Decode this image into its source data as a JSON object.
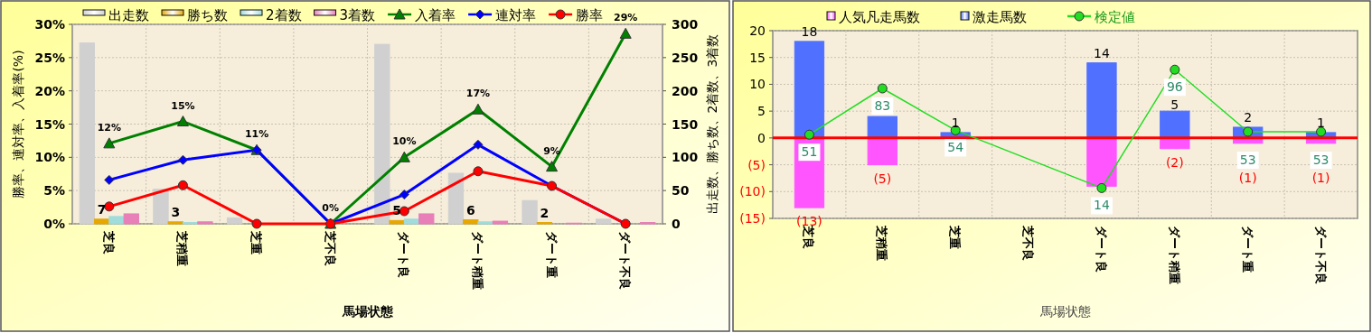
{
  "chart_data": [
    {
      "type": "bar",
      "categories": [
        "芝良",
        "芝稍重",
        "芝重",
        "芝不良",
        "ダート良",
        "ダート稍重",
        "ダート重",
        "ダート不良"
      ],
      "xlabel": "馬場状態",
      "ylabel": "勝率、連対率、入着率(%)",
      "y2label": "出走数、勝ち数、2着数、3着数",
      "ylim": [
        0,
        30
      ],
      "yticks": [
        {
          "value": 0,
          "label": "0%"
        },
        {
          "value": 5,
          "label": "5%"
        },
        {
          "value": 10,
          "label": "10%"
        },
        {
          "value": 15,
          "label": "15%"
        },
        {
          "value": 20,
          "label": "20%"
        },
        {
          "value": 25,
          "label": "25%"
        },
        {
          "value": 30,
          "label": "30%"
        }
      ],
      "y2lim": [
        0,
        300
      ],
      "y2ticks": [
        0,
        50,
        100,
        150,
        200,
        250,
        300
      ],
      "grid": true,
      "legend": "top",
      "series": [
        {
          "name": "出走数",
          "axis": "y2",
          "color": "#d0d0d0",
          "values": [
            272,
            52,
            9,
            0,
            270,
            76,
            35,
            7
          ]
        },
        {
          "name": "勝ち数",
          "axis": "y2",
          "color": "#e6a800",
          "values": [
            7,
            3,
            0,
            0,
            5,
            6,
            2,
            0
          ],
          "value_labels": [
            "7",
            "3",
            null,
            null,
            "5",
            "6",
            "2",
            null
          ]
        },
        {
          "name": "2着数",
          "axis": "y2",
          "color": "#a0dcdc",
          "values": [
            11,
            2,
            null,
            0,
            7,
            3,
            0,
            0
          ]
        },
        {
          "name": "3着数",
          "axis": "y2",
          "color": "#e87fb8",
          "values": [
            15,
            3,
            0,
            0,
            15,
            4,
            1,
            2
          ]
        },
        {
          "name": "入着率",
          "type": "line",
          "axis": "y",
          "color": "#008000",
          "marker": "triangle",
          "values": [
            12.1,
            15.4,
            11.1,
            0,
            10,
            17.2,
            8.6,
            28.6
          ],
          "value_labels": [
            "12%",
            "15%",
            "11%",
            "0%",
            "10%",
            "17%",
            "9%",
            "29%"
          ]
        },
        {
          "name": "連対率",
          "type": "line",
          "axis": "y",
          "color": "#0000ff",
          "marker": "diamond",
          "values": [
            6.6,
            9.6,
            11.1,
            0,
            4.4,
            11.9,
            5.7,
            0
          ]
        },
        {
          "name": "勝率",
          "type": "line",
          "axis": "y",
          "color": "#ff0000",
          "marker": "circle",
          "values": [
            2.6,
            5.8,
            0,
            0,
            1.9,
            7.9,
            5.7,
            0
          ]
        }
      ]
    },
    {
      "type": "bar",
      "stacked": true,
      "categories": [
        "芝良",
        "芝稍重",
        "芝重",
        "芝不良",
        "ダート良",
        "ダート稍重",
        "ダート重",
        "ダート不良"
      ],
      "xlabel": "馬場状態",
      "ylim": [
        -15,
        20
      ],
      "yticks": [
        {
          "value": -15,
          "label": "(15)"
        },
        {
          "value": -10,
          "label": "(10)"
        },
        {
          "value": -5,
          "label": "(5)"
        },
        0,
        5,
        10,
        15,
        20
      ],
      "y2lim": [
        -7,
        123
      ],
      "grid": true,
      "legend": "top",
      "ref_lines": [
        {
          "axis": "y",
          "value": 0,
          "color": "#ff0000"
        }
      ],
      "series": [
        {
          "name": "人気凡走馬数",
          "axis": "y",
          "color": "#ff55ff",
          "values": [
            -13,
            -5,
            0,
            0,
            -9,
            -2,
            -1,
            -1
          ],
          "value_labels": [
            "(13)",
            "(5)",
            null,
            null,
            null,
            "(2)",
            "(1)",
            "(1)"
          ]
        },
        {
          "name": "激走馬数",
          "axis": "y",
          "color": "#5070ff",
          "values": [
            18,
            4,
            1,
            0,
            14,
            5,
            2,
            1
          ],
          "value_labels": [
            "18",
            null,
            "1",
            null,
            "14",
            "5",
            "2",
            "1"
          ]
        },
        {
          "name": "検定値",
          "type": "line",
          "axis": "y2",
          "color": "#22dd22",
          "marker": "circle",
          "values": [
            51,
            83,
            54,
            null,
            14,
            96,
            53,
            53
          ],
          "value_labels": [
            "51",
            "83",
            "54",
            null,
            "14",
            "96",
            "53",
            "53"
          ]
        }
      ]
    }
  ]
}
